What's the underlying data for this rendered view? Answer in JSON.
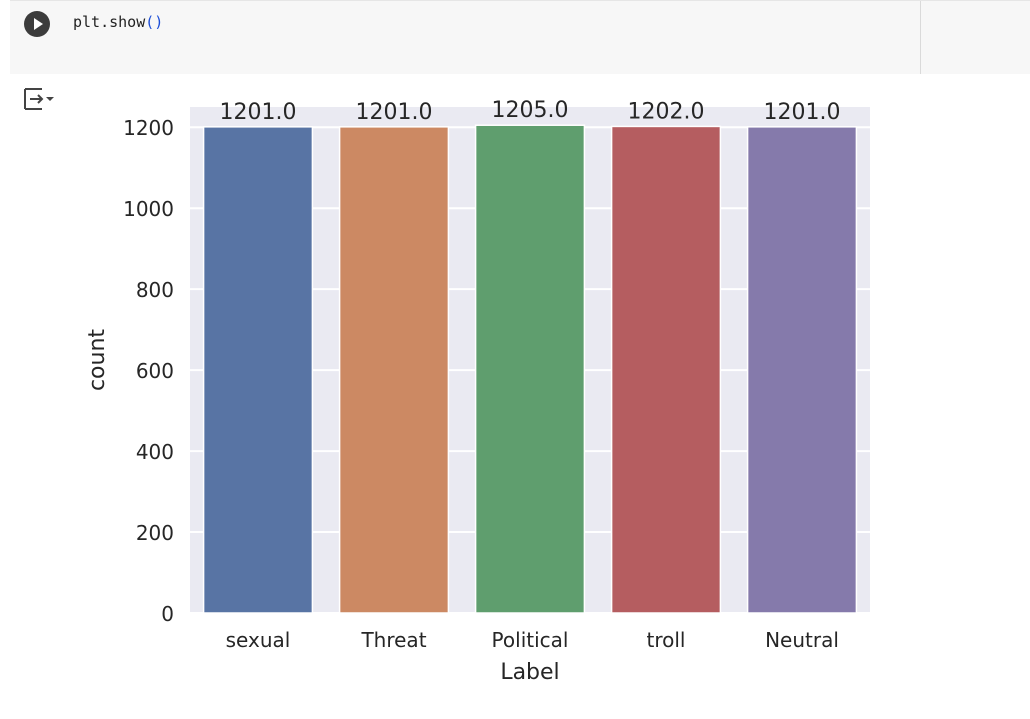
{
  "cell": {
    "code_fn": "plt.show",
    "code_parens": "()"
  },
  "icons": {
    "run": "play-icon",
    "output": "output-toggle-icon"
  },
  "chart_data": {
    "type": "bar",
    "categories": [
      "sexual",
      "Threat",
      "Political",
      "troll",
      "Neutral"
    ],
    "values": [
      1201.0,
      1201.0,
      1205.0,
      1202.0,
      1201.0
    ],
    "labels": [
      "1201.0",
      "1201.0",
      "1205.0",
      "1202.0",
      "1201.0"
    ],
    "colors": [
      "#5874a4",
      "#cc8963",
      "#5f9e6e",
      "#b55d60",
      "#857aab"
    ],
    "title": "",
    "xlabel": "Label",
    "ylabel": "count",
    "ylim": [
      0,
      1250
    ],
    "yticks": [
      0,
      200,
      400,
      600,
      800,
      1000,
      1200
    ],
    "grid": true,
    "background": "#eaeaf2"
  }
}
